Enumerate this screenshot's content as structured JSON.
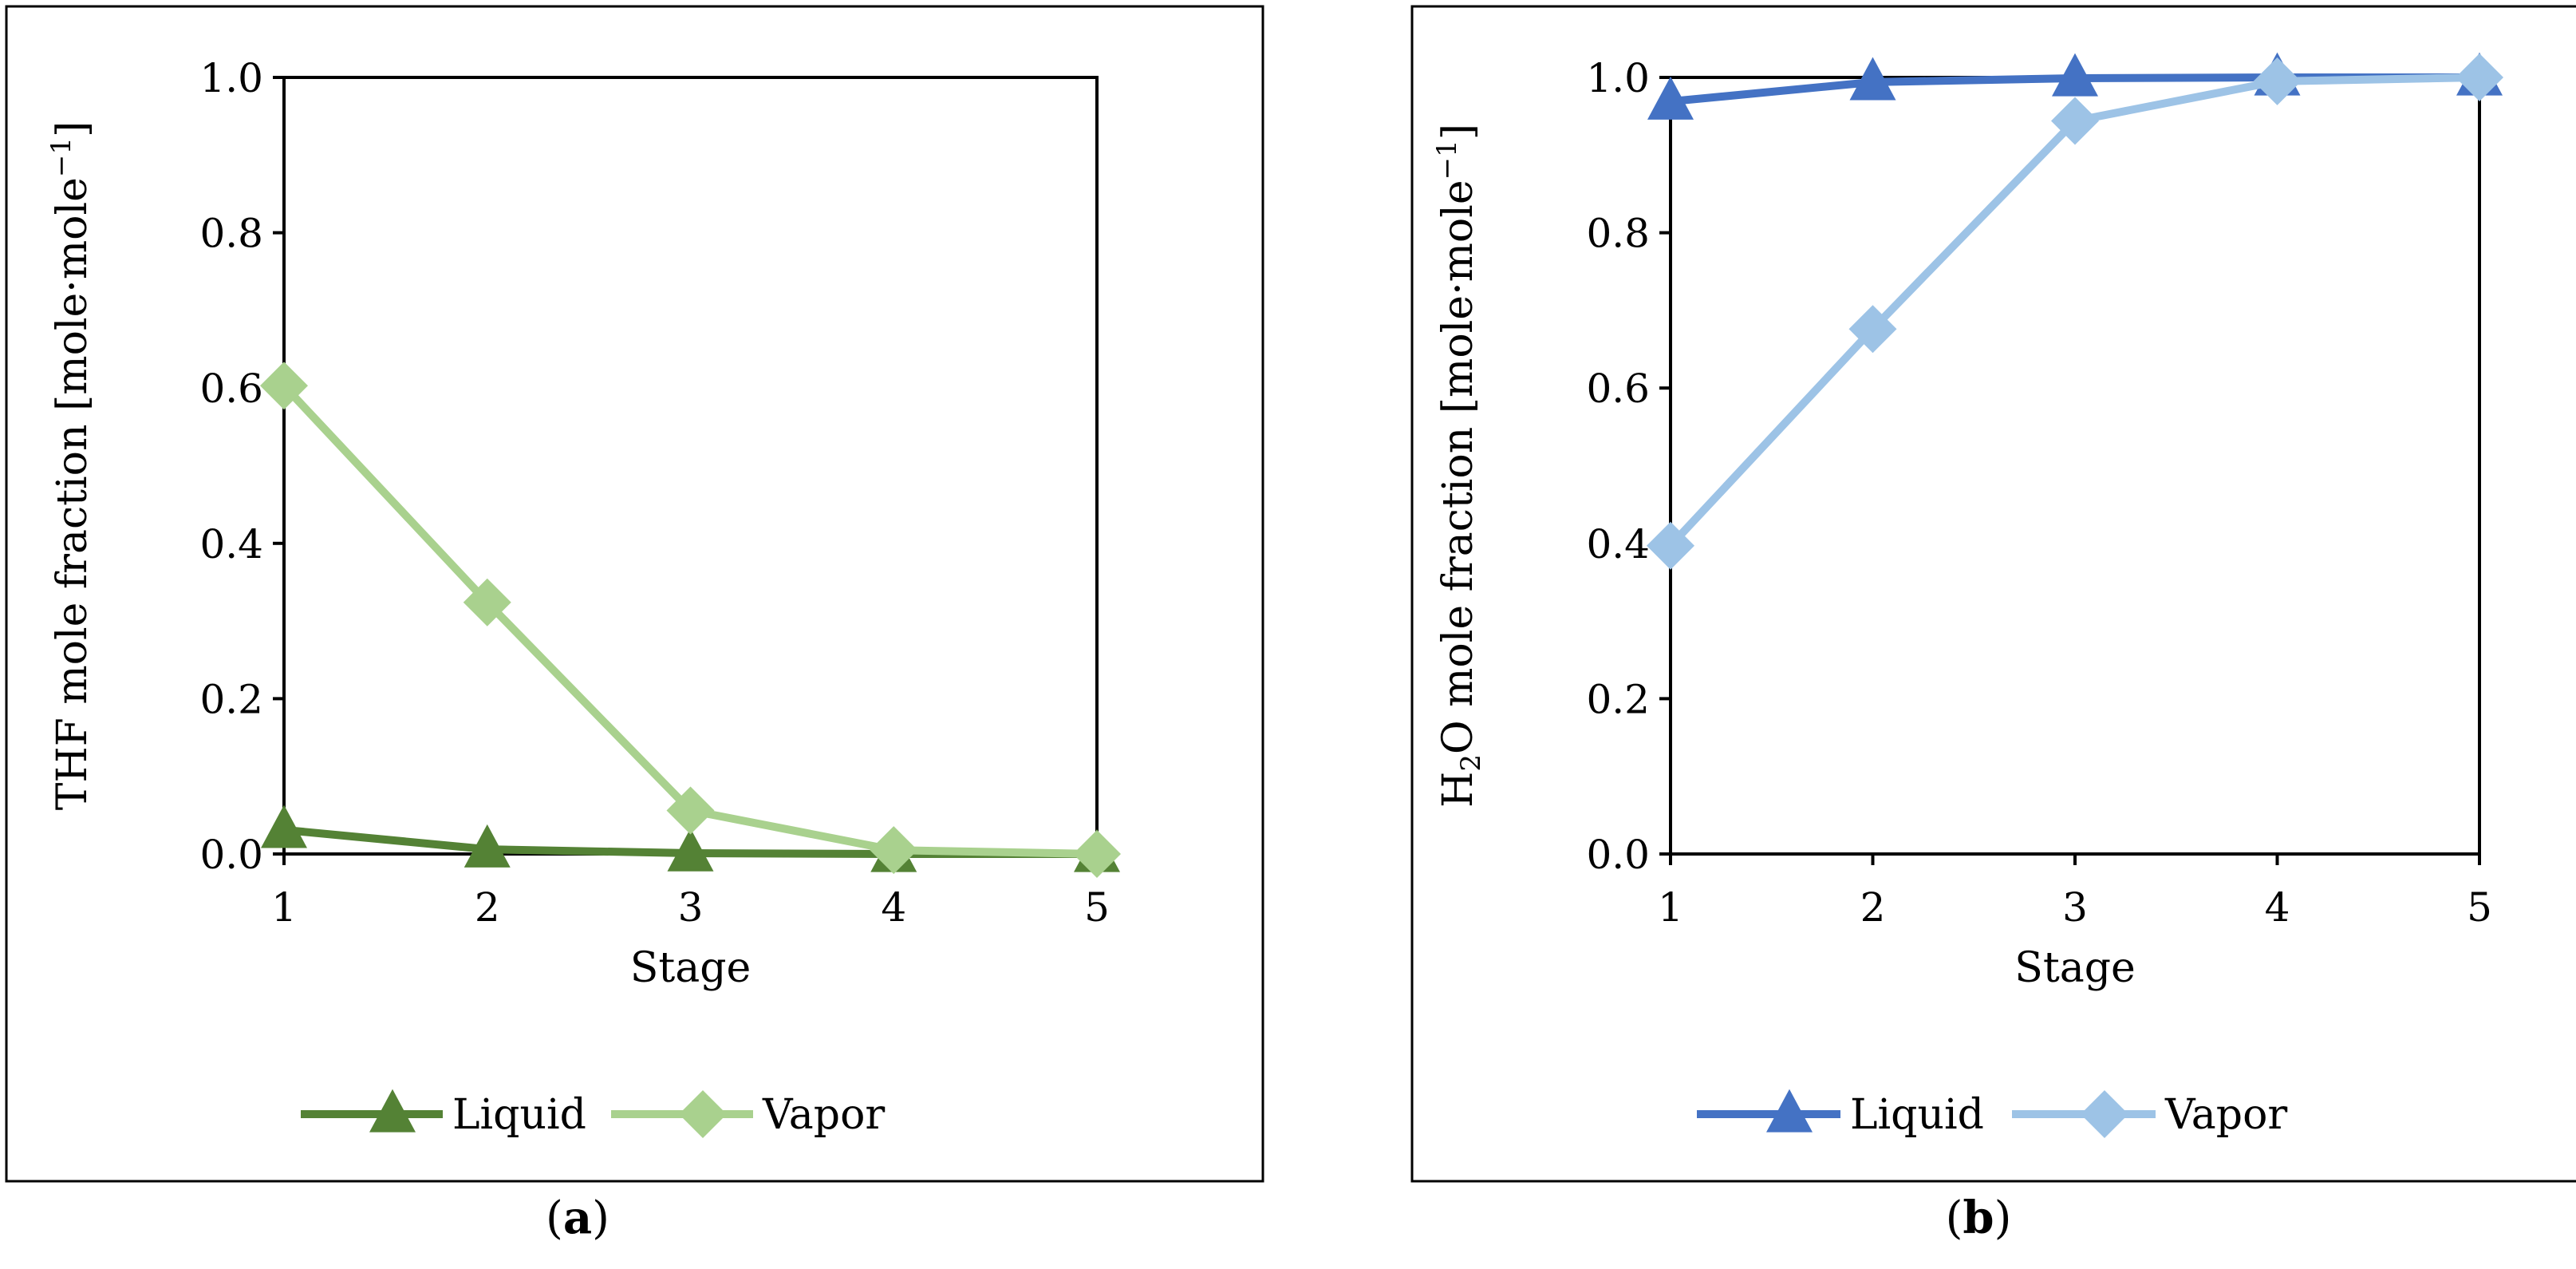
{
  "chart_data": [
    {
      "type": "line",
      "panel_label_prefix": "(",
      "panel_label": "a",
      "panel_label_suffix": ")",
      "xlabel": "Stage",
      "ylabel": "THF mole fraction [mole·mole",
      "ylabel_sup": "−1",
      "ylabel_end": "]",
      "x": [
        1,
        2,
        3,
        4,
        5
      ],
      "xticks": [
        "1",
        "2",
        "3",
        "4",
        "5"
      ],
      "ylim": [
        0,
        1
      ],
      "yticks": [
        "0.0",
        "0.2",
        "0.4",
        "0.6",
        "0.8",
        "1.0"
      ],
      "grid": false,
      "legend_position": "bottom",
      "series": [
        {
          "name": "Liquid",
          "marker": "triangle",
          "color": "#548235",
          "values": [
            0.031,
            0.006,
            0.001,
            0.0,
            0.0
          ]
        },
        {
          "name": "Vapor",
          "marker": "diamond",
          "color": "#A9D18E",
          "values": [
            0.603,
            0.324,
            0.056,
            0.005,
            0.0
          ]
        }
      ]
    },
    {
      "type": "line",
      "panel_label_prefix": "(",
      "panel_label": "b",
      "panel_label_suffix": ")",
      "xlabel": "Stage",
      "ylabel": "H",
      "ylabel_sub": "2",
      "ylabel_mid": "O mole fraction [mole·mole",
      "ylabel_sup": "−1",
      "ylabel_end": "]",
      "x": [
        1,
        2,
        3,
        4,
        5
      ],
      "xticks": [
        "1",
        "2",
        "3",
        "4",
        "5"
      ],
      "ylim": [
        0,
        1
      ],
      "yticks": [
        "0.0",
        "0.2",
        "0.4",
        "0.6",
        "0.8",
        "1.0"
      ],
      "grid": false,
      "legend_position": "bottom",
      "series": [
        {
          "name": "Liquid",
          "marker": "triangle",
          "color": "#4472C4",
          "values": [
            0.969,
            0.994,
            0.999,
            1.0,
            1.0
          ]
        },
        {
          "name": "Vapor",
          "marker": "diamond",
          "color": "#9DC3E6",
          "values": [
            0.397,
            0.676,
            0.944,
            0.995,
            1.0
          ]
        }
      ]
    }
  ]
}
